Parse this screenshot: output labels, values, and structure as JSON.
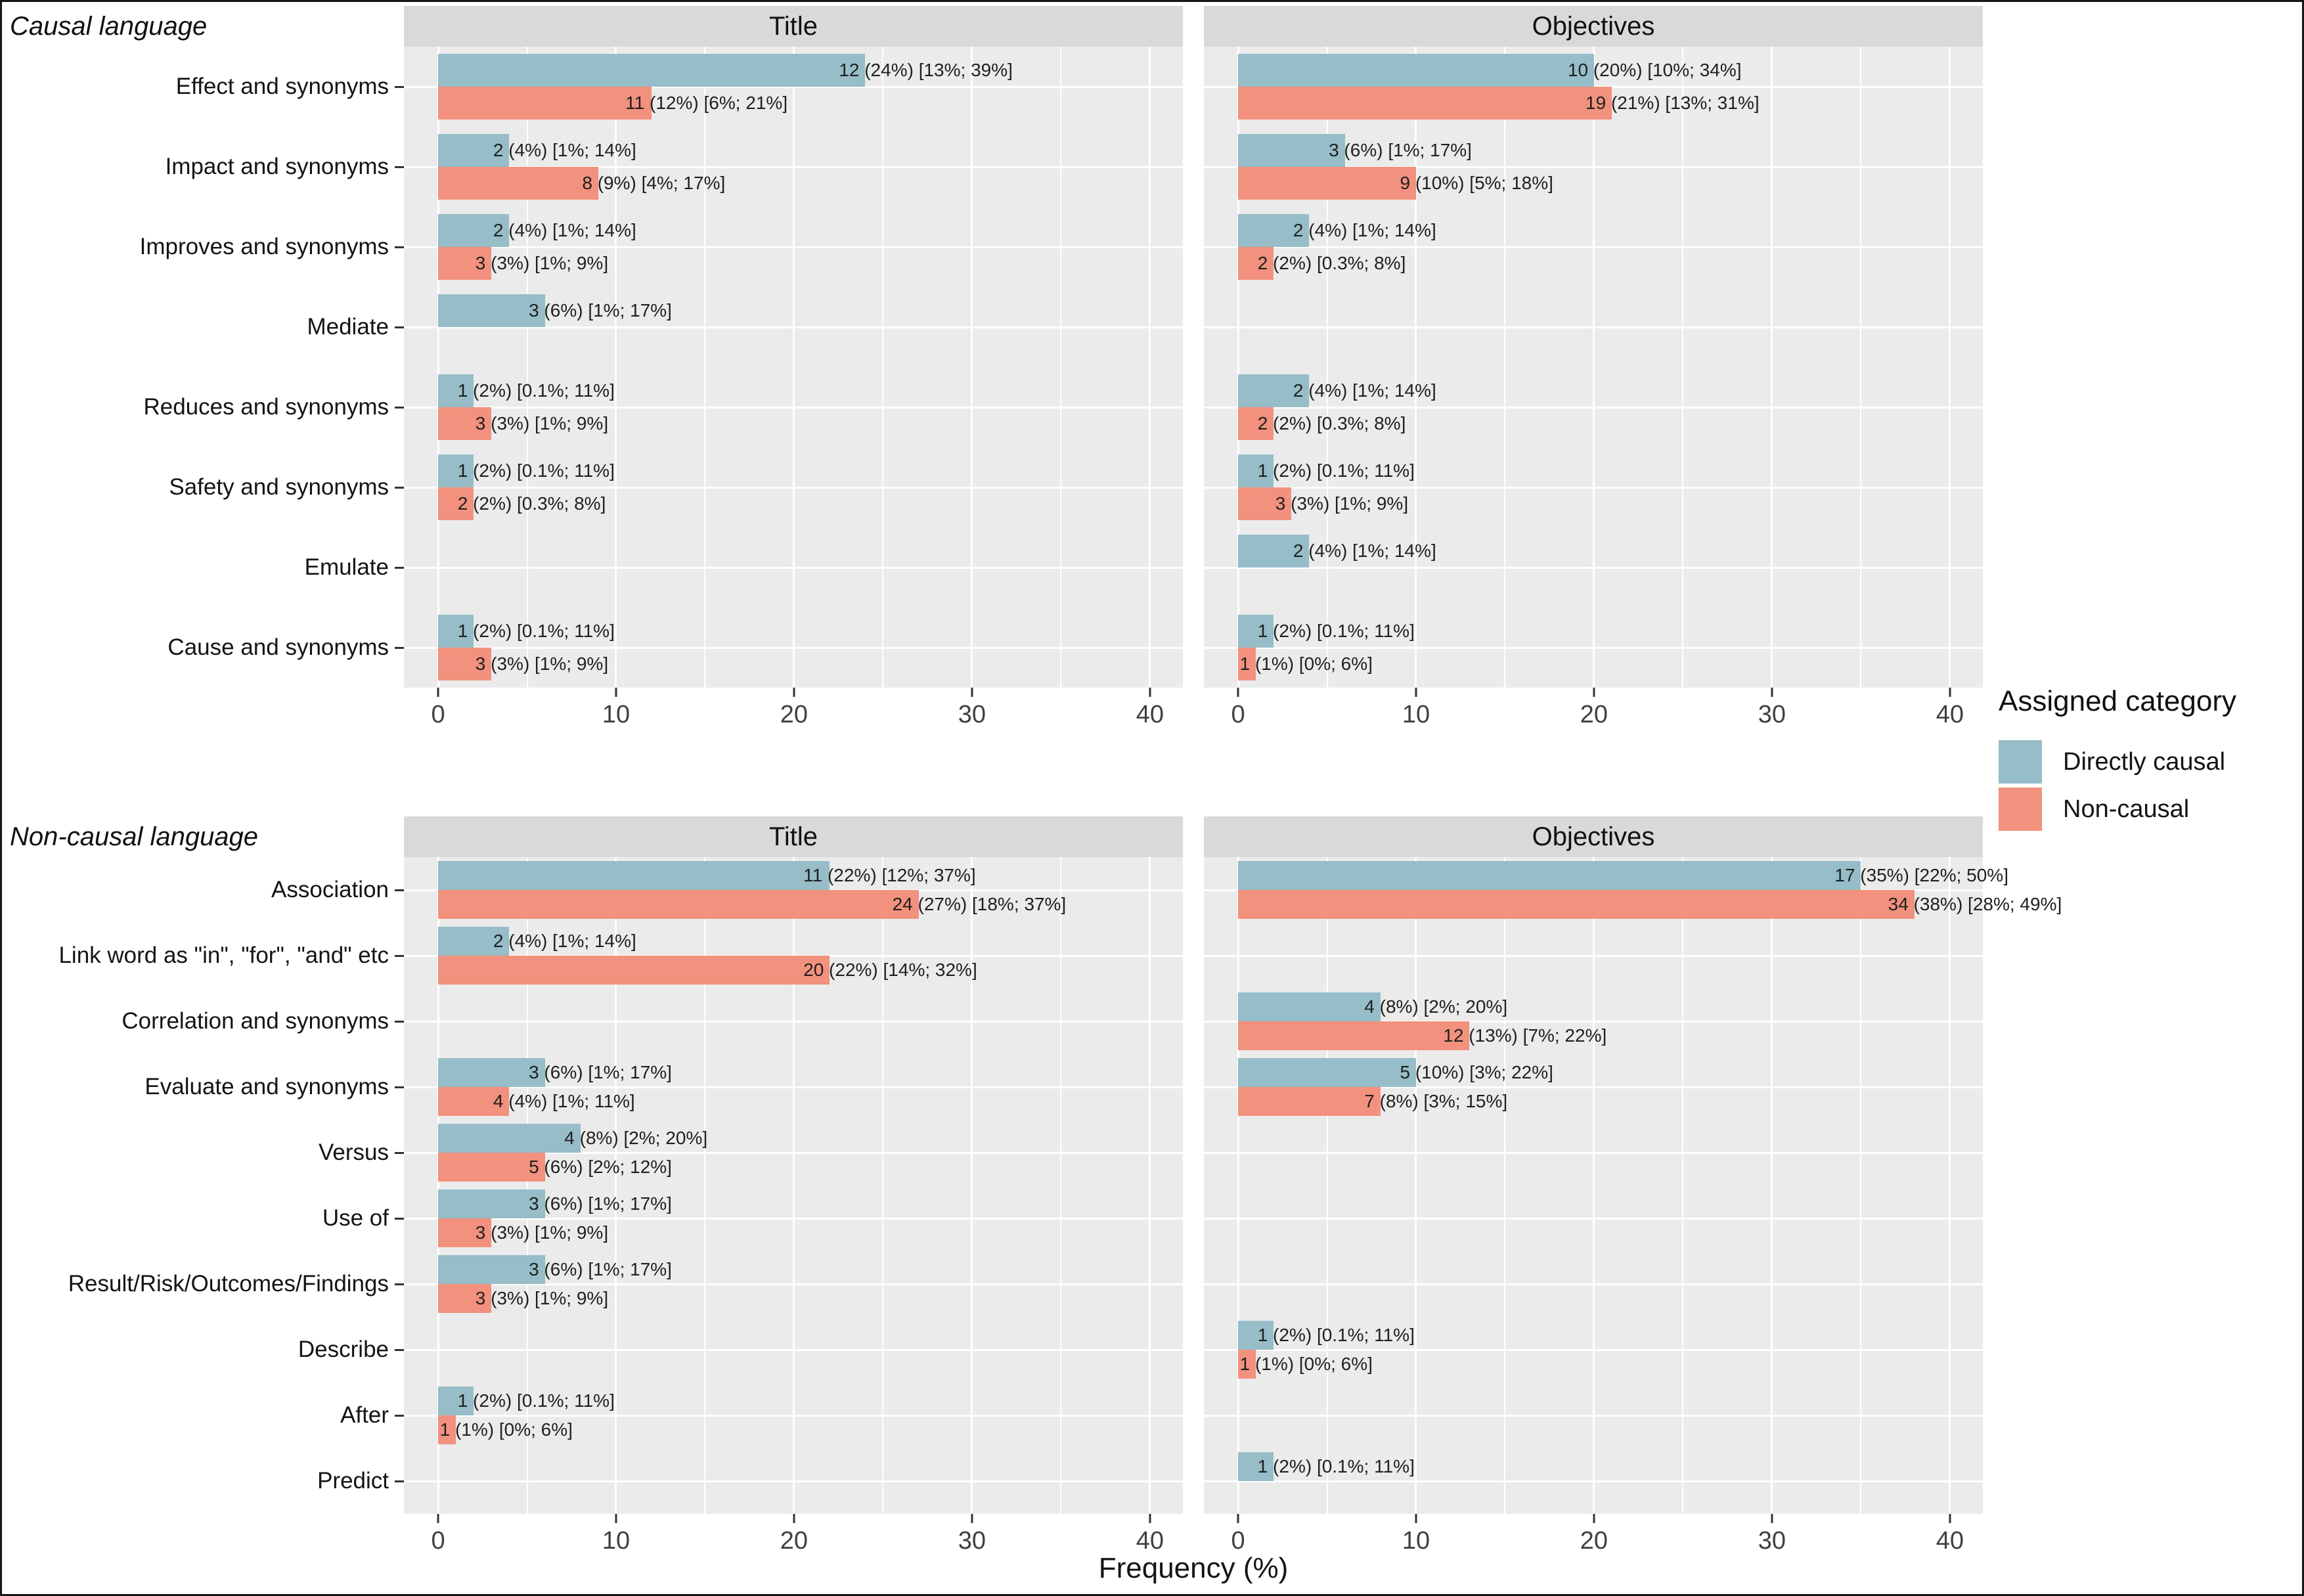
{
  "chart_data": {
    "type": "bar",
    "orientation": "horizontal",
    "xlabel": "Frequency (%)",
    "x_major_ticks": [
      0,
      10,
      20,
      30,
      40
    ],
    "x_minor_ticks": [
      5,
      15,
      25,
      35
    ],
    "xlim": [
      -1.92,
      41.85
    ],
    "grid": true,
    "legend_position": "right",
    "legend": {
      "title": "Assigned category",
      "items": [
        {
          "label": "Directly causal",
          "color": "#96bdc8"
        },
        {
          "label": "Non-causal",
          "color": "#f2917d"
        }
      ]
    },
    "colors": {
      "directly_causal": "#96bdc8",
      "non_causal": "#f2917d",
      "panel_background": "#ebebeb",
      "strip_background": "#d9d9d9",
      "gridline": "#ffffff"
    },
    "facets": [
      {
        "label": "Causal language",
        "categories": [
          "Effect and synonyms",
          "Impact and synonyms",
          "Improves and synonyms",
          "Mediate",
          "Reduces and synonyms",
          "Safety and synonyms",
          "Emulate",
          "Cause and synonyms"
        ],
        "panels": [
          {
            "title": "Title",
            "rows": [
              {
                "dc": {
                  "v": 24,
                  "label": "12 (24%) [13%; 39%]"
                },
                "nc": {
                  "v": 12,
                  "label": "11 (12%) [6%; 21%]"
                }
              },
              {
                "dc": {
                  "v": 4,
                  "label": "2 (4%) [1%; 14%]"
                },
                "nc": {
                  "v": 9,
                  "label": "8 (9%) [4%; 17%]"
                }
              },
              {
                "dc": {
                  "v": 4,
                  "label": "2 (4%) [1%; 14%]"
                },
                "nc": {
                  "v": 3,
                  "label": "3 (3%) [1%; 9%]"
                }
              },
              {
                "dc": {
                  "v": 6,
                  "label": "3 (6%) [1%; 17%]"
                },
                "nc": null
              },
              {
                "dc": {
                  "v": 2,
                  "label": "1 (2%) [0.1%; 11%]"
                },
                "nc": {
                  "v": 3,
                  "label": "3 (3%) [1%; 9%]"
                }
              },
              {
                "dc": {
                  "v": 2,
                  "label": "1 (2%) [0.1%; 11%]"
                },
                "nc": {
                  "v": 2,
                  "label": "2 (2%) [0.3%; 8%]"
                }
              },
              {
                "dc": null,
                "nc": null
              },
              {
                "dc": {
                  "v": 2,
                  "label": "1 (2%) [0.1%; 11%]"
                },
                "nc": {
                  "v": 3,
                  "label": "3 (3%) [1%; 9%]"
                }
              }
            ]
          },
          {
            "title": "Objectives",
            "rows": [
              {
                "dc": {
                  "v": 20,
                  "label": "10 (20%) [10%; 34%]"
                },
                "nc": {
                  "v": 21,
                  "label": "19 (21%) [13%; 31%]"
                }
              },
              {
                "dc": {
                  "v": 6,
                  "label": "3 (6%) [1%; 17%]"
                },
                "nc": {
                  "v": 10,
                  "label": "9 (10%) [5%; 18%]"
                }
              },
              {
                "dc": {
                  "v": 4,
                  "label": "2 (4%) [1%; 14%]"
                },
                "nc": {
                  "v": 2,
                  "label": "2 (2%) [0.3%; 8%]"
                }
              },
              {
                "dc": null,
                "nc": null
              },
              {
                "dc": {
                  "v": 4,
                  "label": "2 (4%) [1%; 14%]"
                },
                "nc": {
                  "v": 2,
                  "label": "2 (2%) [0.3%; 8%]"
                }
              },
              {
                "dc": {
                  "v": 2,
                  "label": "1 (2%) [0.1%; 11%]"
                },
                "nc": {
                  "v": 3,
                  "label": "3 (3%) [1%; 9%]"
                }
              },
              {
                "dc": {
                  "v": 4,
                  "label": "2 (4%) [1%; 14%]"
                },
                "nc": null
              },
              {
                "dc": {
                  "v": 2,
                  "label": "1 (2%) [0.1%; 11%]"
                },
                "nc": {
                  "v": 1,
                  "label": "1 (1%) [0%; 6%]"
                }
              }
            ]
          }
        ]
      },
      {
        "label": "Non-causal language",
        "categories": [
          "Association",
          "Link word as \"in\", \"for\", \"and\" etc",
          "Correlation and synonyms",
          "Evaluate and synonyms",
          "Versus",
          "Use of",
          "Result/Risk/Outcomes/Findings",
          "Describe",
          "After",
          "Predict"
        ],
        "panels": [
          {
            "title": "Title",
            "rows": [
              {
                "dc": {
                  "v": 22,
                  "label": "11 (22%) [12%; 37%]"
                },
                "nc": {
                  "v": 27,
                  "label": "24 (27%) [18%; 37%]"
                }
              },
              {
                "dc": {
                  "v": 4,
                  "label": "2 (4%) [1%; 14%]"
                },
                "nc": {
                  "v": 22,
                  "label": "20 (22%) [14%; 32%]"
                }
              },
              {
                "dc": null,
                "nc": null
              },
              {
                "dc": {
                  "v": 6,
                  "label": "3 (6%) [1%; 17%]"
                },
                "nc": {
                  "v": 4,
                  "label": "4 (4%) [1%; 11%]"
                }
              },
              {
                "dc": {
                  "v": 8,
                  "label": "4 (8%) [2%; 20%]"
                },
                "nc": {
                  "v": 6,
                  "label": "5 (6%) [2%; 12%]"
                }
              },
              {
                "dc": {
                  "v": 6,
                  "label": "3 (6%) [1%; 17%]"
                },
                "nc": {
                  "v": 3,
                  "label": "3 (3%) [1%; 9%]"
                }
              },
              {
                "dc": {
                  "v": 6,
                  "label": "3 (6%) [1%; 17%]"
                },
                "nc": {
                  "v": 3,
                  "label": "3 (3%) [1%; 9%]"
                }
              },
              {
                "dc": null,
                "nc": null
              },
              {
                "dc": {
                  "v": 2,
                  "label": "1 (2%) [0.1%; 11%]"
                },
                "nc": {
                  "v": 1,
                  "label": "1 (1%) [0%; 6%]"
                }
              },
              {
                "dc": null,
                "nc": null
              }
            ]
          },
          {
            "title": "Objectives",
            "rows": [
              {
                "dc": {
                  "v": 35,
                  "label": "17 (35%) [22%; 50%]"
                },
                "nc": {
                  "v": 38,
                  "label": "34 (38%) [28%; 49%]"
                }
              },
              {
                "dc": null,
                "nc": null
              },
              {
                "dc": {
                  "v": 8,
                  "label": "4 (8%) [2%; 20%]"
                },
                "nc": {
                  "v": 13,
                  "label": "12 (13%) [7%; 22%]"
                }
              },
              {
                "dc": {
                  "v": 10,
                  "label": "5 (10%) [3%; 22%]"
                },
                "nc": {
                  "v": 8,
                  "label": "7 (8%) [3%; 15%]"
                }
              },
              {
                "dc": null,
                "nc": null
              },
              {
                "dc": null,
                "nc": null
              },
              {
                "dc": null,
                "nc": null
              },
              {
                "dc": {
                  "v": 2,
                  "label": "1 (2%) [0.1%; 11%]"
                },
                "nc": {
                  "v": 1,
                  "label": "1 (1%) [0%; 6%]"
                }
              },
              {
                "dc": null,
                "nc": null
              },
              {
                "dc": {
                  "v": 2,
                  "label": "1 (2%) [0.1%; 11%]"
                },
                "nc": null
              }
            ]
          }
        ]
      }
    ]
  }
}
